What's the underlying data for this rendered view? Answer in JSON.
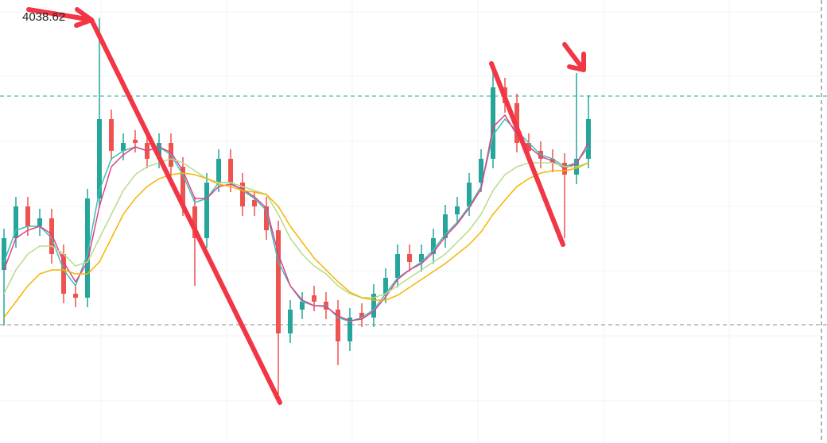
{
  "chart_data": {
    "type": "candlestick",
    "ylim": [
      3771,
      4050
    ],
    "up_color": "#26a69a",
    "down_color": "#ef5350",
    "open": [
      3880,
      3900,
      3920,
      3907.5,
      3912.5,
      3890,
      3865,
      3862.5,
      3925,
      3975,
      3955,
      3962,
      3960,
      3950,
      3960,
      3945,
      3920,
      3900,
      3935,
      3950,
      3935,
      3924,
      3920,
      3905,
      3840,
      3855,
      3864,
      3860,
      3855,
      3835,
      3853,
      3850,
      3865,
      3875,
      3890,
      3885,
      3890,
      3900,
      3915,
      3920,
      3935,
      3950,
      3995,
      3985,
      3960,
      3955,
      3950,
      3947.5,
      3940,
      3950
    ],
    "high": [
      3906,
      3926,
      3926,
      3918.5,
      3918.5,
      3896,
      3871,
      3931,
      4038.62,
      3981,
      3966,
      3968,
      3966,
      3966,
      3966,
      3951,
      3926,
      3941,
      3956,
      3956,
      3941,
      3930,
      3926,
      3911,
      3861,
      3866,
      3870,
      3866,
      3861,
      3856,
      3859,
      3871,
      3881,
      3896,
      3896,
      3896,
      3906,
      3921,
      3926,
      3941,
      3956,
      4010,
      4001,
      3991,
      3966,
      3961,
      3956,
      3953.5,
      4004,
      3990
    ],
    "low": [
      3845,
      3894,
      3901.5,
      3901.5,
      3884,
      3859,
      3856.5,
      3856.5,
      3919,
      3949,
      3949,
      3954,
      3944,
      3944,
      3939,
      3914,
      3870,
      3894,
      3929,
      3929,
      3914,
      3914,
      3899,
      3797.5,
      3834,
      3849,
      3854,
      3849,
      3820,
      3829,
      3844,
      3844,
      3859,
      3869,
      3879,
      3879,
      3884,
      3894,
      3909,
      3914,
      3929,
      3944,
      3979,
      3954,
      3949,
      3944,
      3941.5,
      3900,
      3934,
      3944
    ],
    "close": [
      3900,
      3920,
      3907.5,
      3912.5,
      3890,
      3865,
      3862.5,
      3925,
      3975,
      3955,
      3960,
      3960,
      3950,
      3960,
      3945,
      3920,
      3900,
      3935,
      3950,
      3935,
      3920,
      3920,
      3905,
      3840,
      3855,
      3860,
      3860,
      3855,
      3835,
      3850,
      3850,
      3865,
      3875,
      3890,
      3885,
      3890,
      3900,
      3915,
      3920,
      3935,
      3950,
      3995,
      3985,
      3960,
      3955,
      3950,
      3947.5,
      3940,
      3950,
      3975
    ],
    "series": [
      {
        "color": "#3cc0b0",
        "values": [
          3885,
          3905,
          3907.5,
          3907.5,
          3900,
          3880,
          3870,
          3890,
          3930,
          3950,
          3955,
          3957.5,
          3955,
          3957.5,
          3952.5,
          3940,
          3922.5,
          3925,
          3935,
          3935,
          3930,
          3925,
          3917.5,
          3885,
          3870,
          3860,
          3857.5,
          3857.5,
          3850,
          3847.5,
          3850,
          3855,
          3865,
          3875,
          3880,
          3885,
          3892.5,
          3902.5,
          3910,
          3920,
          3932.5,
          3965,
          3975,
          3967.5,
          3960,
          3952.5,
          3950,
          3945,
          3947.5,
          3957.5
        ]
      },
      {
        "color": "#e0408a",
        "values": [
          3880,
          3900,
          3905,
          3907.5,
          3902.5,
          3885,
          3872.5,
          3885,
          3920,
          3945,
          3952.5,
          3957.5,
          3955,
          3957.5,
          3954,
          3942.5,
          3925,
          3925,
          3932.5,
          3934,
          3931,
          3926,
          3919,
          3890,
          3870,
          3861,
          3857.5,
          3857,
          3851,
          3848,
          3849,
          3854,
          3863,
          3874,
          3880,
          3884,
          3891,
          3901,
          3909,
          3919,
          3931,
          3970,
          3977.5,
          3965,
          3957.5,
          3951.5,
          3948.5,
          3944,
          3947,
          3960
        ]
      },
      {
        "color": "#b5dc8c",
        "values": [
          3865,
          3880,
          3890,
          3895,
          3895,
          3890,
          3882.5,
          3885,
          3900,
          3915,
          3930,
          3940,
          3945,
          3947.5,
          3950,
          3947.5,
          3942.5,
          3937.5,
          3935,
          3935,
          3932.5,
          3930,
          3927.5,
          3915,
          3900,
          3890,
          3882.5,
          3877.5,
          3870,
          3865,
          3862.5,
          3862.5,
          3865,
          3870,
          3875,
          3880,
          3885,
          3890,
          3897.5,
          3905,
          3915,
          3930,
          3940,
          3945,
          3947.5,
          3947.5,
          3947.5,
          3945,
          3945,
          3947.5
        ]
      },
      {
        "color": "#f5b400",
        "values": [
          3850,
          3860,
          3870,
          3877.5,
          3880,
          3880,
          3877.5,
          3877.5,
          3885,
          3900,
          3915,
          3925,
          3932.5,
          3937.5,
          3940,
          3941,
          3940,
          3937.5,
          3934,
          3932.5,
          3930,
          3929,
          3927.5,
          3920,
          3907.5,
          3897.5,
          3887.5,
          3880,
          3872.5,
          3866,
          3862.5,
          3861,
          3861,
          3864,
          3869,
          3874,
          3879,
          3884,
          3890,
          3896,
          3904,
          3915,
          3924,
          3932.5,
          3937.5,
          3941,
          3942.5,
          3942.5,
          3944,
          3947.5
        ]
      }
    ],
    "price_lines": [
      {
        "value": 3989.5,
        "color": "#26a69a"
      },
      {
        "value": 3845.5,
        "color": "#888888"
      }
    ]
  }
}
